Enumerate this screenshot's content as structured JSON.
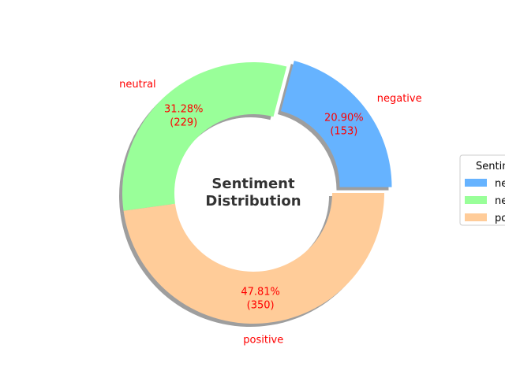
{
  "chart_data": {
    "type": "pie",
    "donut": true,
    "title": "Sentiment\nDistribution",
    "slices": [
      {
        "label": "negative",
        "value": 153,
        "percent_text": "20.90%",
        "count_text": "(153)",
        "color": "#66b3ff",
        "explode": true
      },
      {
        "label": "neutral",
        "value": 229,
        "percent_text": "31.28%",
        "count_text": "(229)",
        "color": "#99ff99",
        "explode": false
      },
      {
        "label": "positive",
        "value": 350,
        "percent_text": "47.81%",
        "count_text": "(350)",
        "color": "#ffcc99",
        "explode": false
      }
    ],
    "start_angle_deg": 0,
    "direction": "counterclockwise",
    "shadow": true,
    "label_color": "#ff0000",
    "legend": {
      "title": "Sentiment",
      "placement": "right",
      "entries": [
        "negative",
        "neutral",
        "positive"
      ]
    }
  }
}
